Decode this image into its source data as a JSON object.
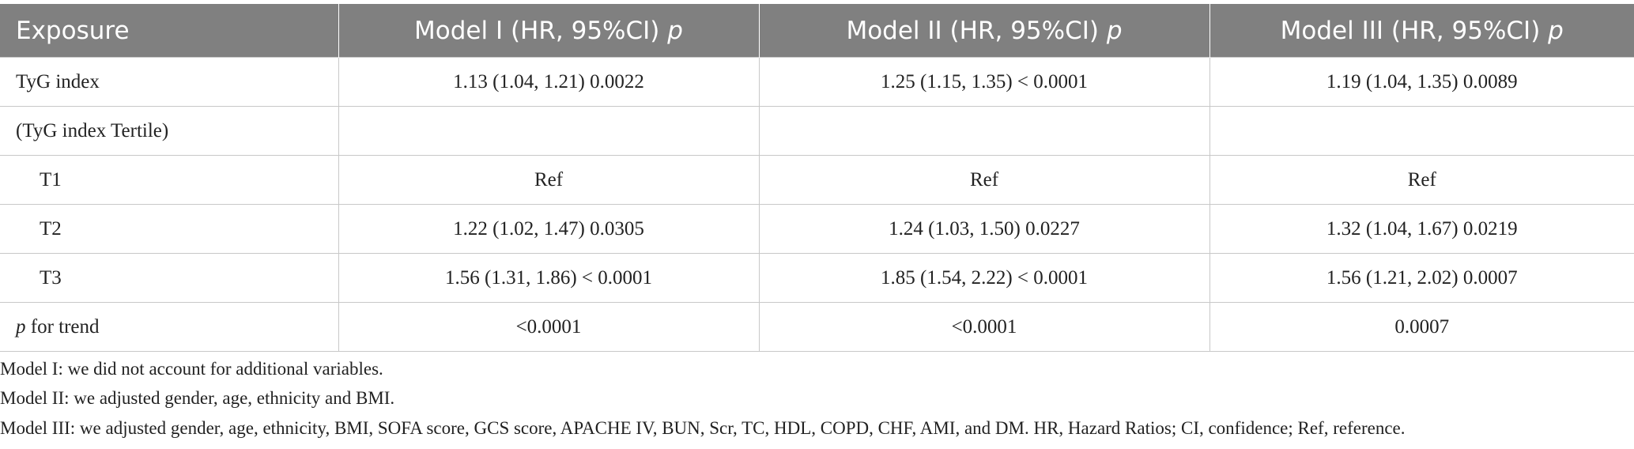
{
  "table": {
    "header": [
      {
        "text": "Exposure"
      },
      {
        "text": "Model I (HR, 95%CI)",
        "italic": "p"
      },
      {
        "text": "Model II (HR, 95%CI)",
        "italic": "p"
      },
      {
        "text": "Model III (HR, 95%CI)",
        "italic": "p"
      }
    ],
    "rows": [
      [
        "TyG index",
        "1.13 (1.04, 1.21) 0.0022",
        "1.25 (1.15, 1.35) < 0.0001",
        "1.19 (1.04, 1.35) 0.0089"
      ],
      [
        "(TyG index Tertile)"
      ],
      [
        "T1",
        "Ref",
        "Ref",
        "Ref"
      ],
      [
        "T2",
        "1.22 (1.02, 1.47) 0.0305",
        "1.24 (1.03, 1.50) 0.0227",
        "1.32 (1.04, 1.67) 0.0219"
      ],
      [
        "T3",
        "1.56 (1.31, 1.86) < 0.0001",
        "1.85 (1.54, 2.22) < 0.0001",
        "1.56 (1.21, 2.02) 0.0007"
      ],
      [
        {
          "italic": "p",
          "text": "for trend"
        },
        "<0.0001",
        "<0.0001",
        "0.0007"
      ]
    ]
  },
  "footnotes": [
    "Model I: we did not account for additional variables.",
    "Model II: we adjusted gender, age, ethnicity and BMI.",
    "Model III: we adjusted gender, age, ethnicity, BMI, SOFA score, GCS score, APACHE IV, BUN, Scr, TC, HDL, COPD, CHF, AMI, and DM. HR, Hazard Ratios; CI, confidence; Ref, reference."
  ]
}
